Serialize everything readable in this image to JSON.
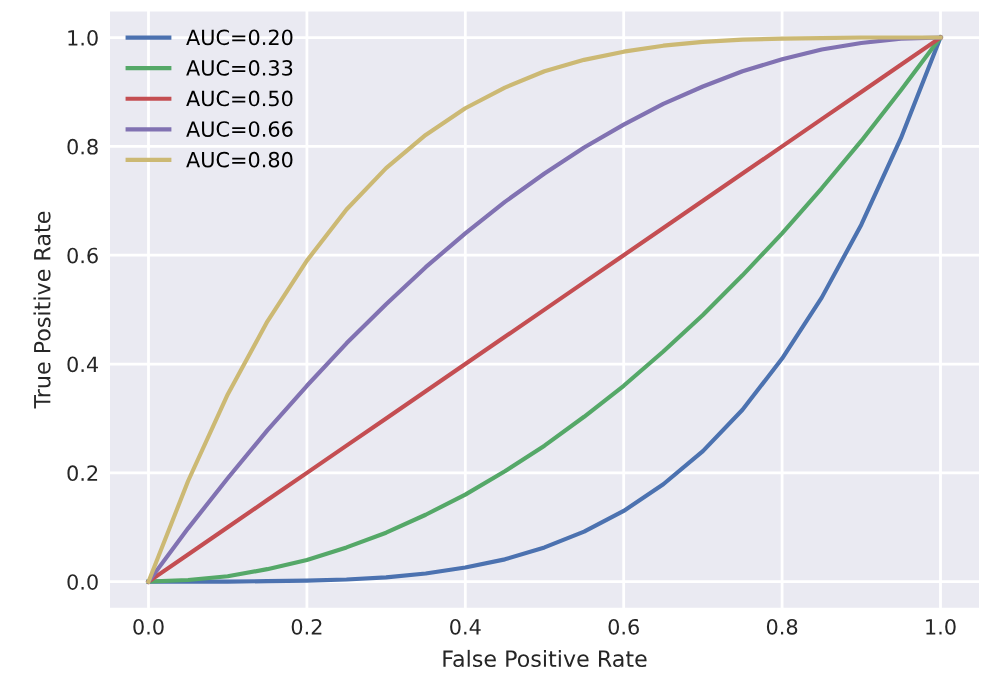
{
  "chart_data": {
    "type": "line",
    "xlabel": "False Positive Rate",
    "ylabel": "True Positive Rate",
    "x": [
      0,
      0.05,
      0.1,
      0.15,
      0.2,
      0.25,
      0.3,
      0.35,
      0.4,
      0.45,
      0.5,
      0.55,
      0.6,
      0.65,
      0.7,
      0.75,
      0.8,
      0.85,
      0.9,
      0.95,
      1
    ],
    "series": [
      {
        "name": "AUC=0.20",
        "color": "#4c72b0",
        "values": [
          0,
          0,
          0,
          0.001,
          0.002,
          0.004,
          0.008,
          0.015,
          0.026,
          0.041,
          0.063,
          0.092,
          0.13,
          0.179,
          0.24,
          0.316,
          0.41,
          0.522,
          0.656,
          0.815,
          1
        ]
      },
      {
        "name": "AUC=0.33",
        "color": "#55a868",
        "values": [
          0,
          0.003,
          0.01,
          0.023,
          0.04,
          0.063,
          0.09,
          0.123,
          0.16,
          0.203,
          0.25,
          0.303,
          0.36,
          0.423,
          0.49,
          0.563,
          0.64,
          0.723,
          0.81,
          0.903,
          1
        ]
      },
      {
        "name": "AUC=0.50",
        "color": "#c44e52",
        "values": [
          0,
          0.05,
          0.1,
          0.15,
          0.2,
          0.25,
          0.3,
          0.35,
          0.4,
          0.45,
          0.5,
          0.55,
          0.6,
          0.65,
          0.7,
          0.75,
          0.8,
          0.85,
          0.9,
          0.95,
          1
        ]
      },
      {
        "name": "AUC=0.66",
        "color": "#8172b2",
        "values": [
          0,
          0.098,
          0.19,
          0.278,
          0.36,
          0.438,
          0.51,
          0.578,
          0.64,
          0.698,
          0.75,
          0.798,
          0.84,
          0.878,
          0.91,
          0.938,
          0.96,
          0.978,
          0.99,
          0.998,
          1
        ]
      },
      {
        "name": "AUC=0.80",
        "color": "#ccb974",
        "values": [
          0,
          0.185,
          0.344,
          0.478,
          0.59,
          0.684,
          0.76,
          0.821,
          0.87,
          0.908,
          0.938,
          0.959,
          0.974,
          0.985,
          0.992,
          0.996,
          0.998,
          0.999,
          1,
          1,
          1
        ]
      }
    ],
    "xlim": [
      -0.05,
      1.05
    ],
    "ylim": [
      -0.05,
      1.05
    ],
    "xticks": [
      {
        "value": 0,
        "label": "0.0"
      },
      {
        "value": 0.2,
        "label": "0.2"
      },
      {
        "value": 0.4,
        "label": "0.4"
      },
      {
        "value": 0.6,
        "label": "0.6"
      },
      {
        "value": 0.8,
        "label": "0.8"
      },
      {
        "value": 1,
        "label": "1.0"
      }
    ],
    "yticks": [
      {
        "value": 0,
        "label": "0.0"
      },
      {
        "value": 0.2,
        "label": "0.2"
      },
      {
        "value": 0.4,
        "label": "0.4"
      },
      {
        "value": 0.6,
        "label": "0.6"
      },
      {
        "value": 0.8,
        "label": "0.8"
      },
      {
        "value": 1,
        "label": "1.0"
      }
    ],
    "grid": true,
    "legend": "top left",
    "marker": "none",
    "line_style": "solid"
  }
}
